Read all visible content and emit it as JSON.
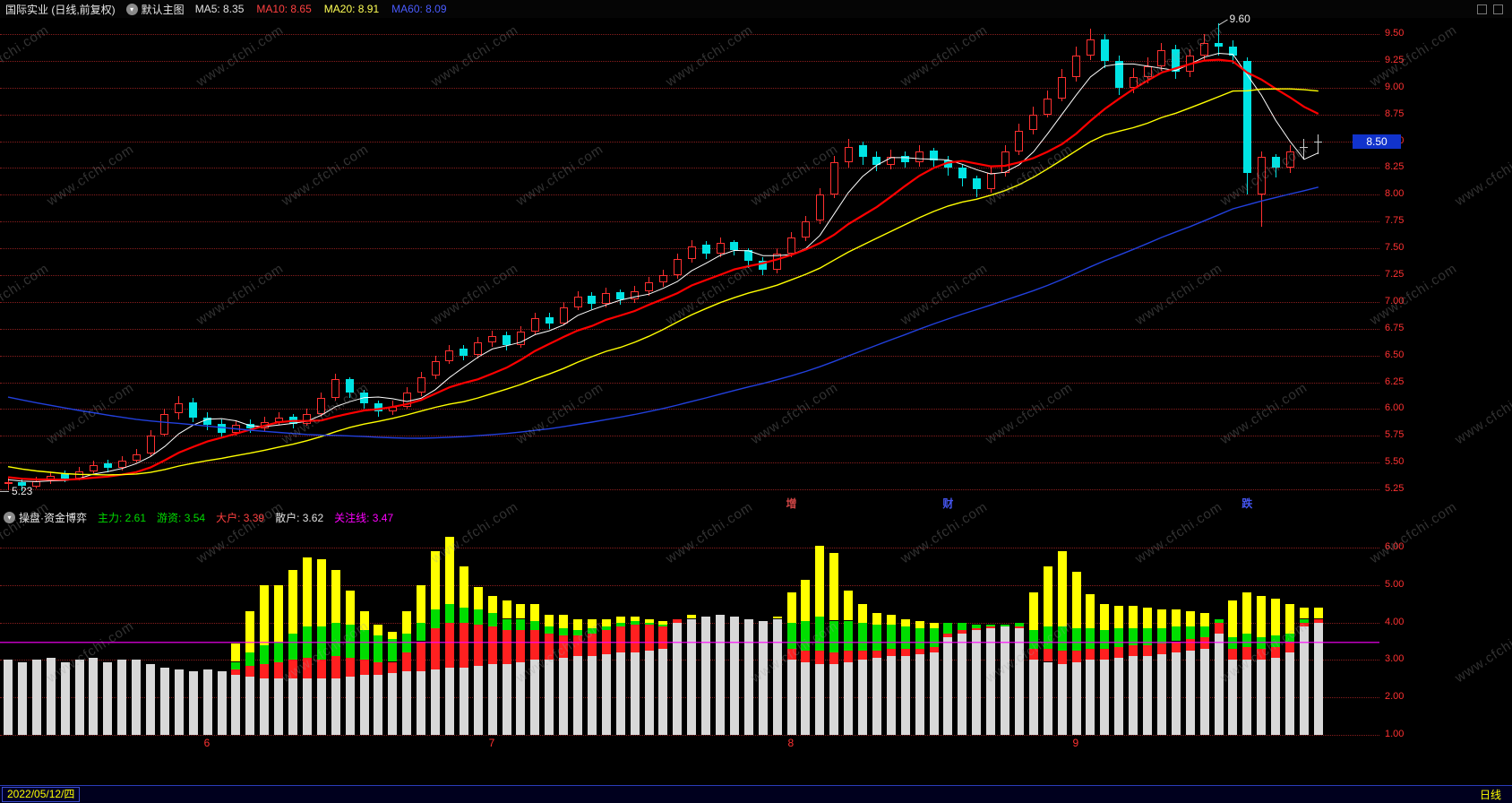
{
  "app": {
    "watermark": "www.cfchi.com",
    "topbar": {
      "title": "国际实业 (日线,前复权)",
      "chart_style_label": "默认主图",
      "ma_labels": [
        {
          "label": "MA5: 8.35",
          "color": "#e0e0e0"
        },
        {
          "label": "MA10: 8.65",
          "color": "#ff4040"
        },
        {
          "label": "MA20: 8.91",
          "color": "#ffff55"
        },
        {
          "label": "MA60: 8.09",
          "color": "#4a5cff"
        }
      ]
    },
    "sub_header": {
      "title": "操盘·资金博弈",
      "values": [
        {
          "label": "主力: 2.61",
          "color": "#00dd00"
        },
        {
          "label": "游资: 3.54",
          "color": "#00dd00"
        },
        {
          "label": "大户: 3.39",
          "color": "#ff4040"
        },
        {
          "label": "散户: 3.62",
          "color": "#e0e0e0"
        },
        {
          "label": "关注线: 3.47",
          "color": "#ff00ff"
        }
      ]
    },
    "status_bar": {
      "date": "2022/05/12/四",
      "period": "日线"
    }
  },
  "chart_data": [
    {
      "type": "candlestick",
      "title": "国际实业 日线 前复权",
      "ylim": [
        5.2,
        9.65
      ],
      "y_ticks": [
        9.5,
        9.25,
        9.0,
        8.75,
        8.5,
        8.25,
        8.0,
        7.75,
        7.5,
        7.25,
        7.0,
        6.75,
        6.5,
        6.25,
        6.0,
        5.75,
        5.5,
        5.25
      ],
      "last_price": 8.5,
      "annotations": [
        {
          "text": "9.60",
          "day": 85,
          "price": 9.6
        },
        {
          "text": "5.23",
          "day": 1,
          "price": 5.23
        }
      ],
      "events": [
        {
          "text": "增",
          "day": 55,
          "color": "#cc4444"
        },
        {
          "text": "财",
          "day": 66,
          "color": "#4455ee"
        },
        {
          "text": "跌",
          "day": 87,
          "color": "#4455ee"
        }
      ],
      "x_ticks": [
        {
          "label": "6",
          "day": 14
        },
        {
          "label": "7",
          "day": 34
        },
        {
          "label": "8",
          "day": 55
        },
        {
          "label": "9",
          "day": 75
        }
      ],
      "ma": [
        {
          "name": "MA5",
          "n": 5,
          "color": "#ffffff",
          "width": 1
        },
        {
          "name": "MA10",
          "n": 10,
          "color": "#ff0000",
          "width": 2.2
        },
        {
          "name": "MA20",
          "n": 20,
          "color": "#ffff00",
          "width": 1.4
        },
        {
          "name": "MA60",
          "n": 60,
          "color": "#2240dd",
          "width": 1.4
        }
      ],
      "colors": {
        "up": "#ff3030",
        "down": "#00e4e4",
        "doji": "#cccccc",
        "grid": "#be2a2a",
        "axis_text": "#ff3232",
        "price_marker_bg": "#1133cc"
      },
      "candle_format": "[open, close, low, high]",
      "pre_closes": [
        6.9,
        6.88,
        6.86,
        6.84,
        6.82,
        6.8,
        6.78,
        6.76,
        6.74,
        6.72,
        6.7,
        6.68,
        6.66,
        6.64,
        6.62,
        6.6,
        6.58,
        6.56,
        6.54,
        6.52,
        6.5,
        6.48,
        6.46,
        6.44,
        6.42,
        6.4,
        6.38,
        6.36,
        6.34,
        6.32,
        6.25,
        6.2,
        6.15,
        6.1,
        6.05,
        6.0,
        5.95,
        5.9,
        5.85,
        5.8,
        5.76,
        5.72,
        5.68,
        5.64,
        5.6,
        5.56,
        5.52,
        5.5,
        5.48,
        5.46,
        5.44,
        5.42,
        5.4,
        5.38,
        5.37,
        5.36,
        5.35,
        5.35,
        5.34,
        5.34
      ],
      "candles": [
        [
          5.3,
          5.32,
          5.24,
          5.36
        ],
        [
          5.32,
          5.28,
          5.23,
          5.34
        ],
        [
          5.28,
          5.33,
          5.26,
          5.37
        ],
        [
          5.33,
          5.38,
          5.3,
          5.42
        ],
        [
          5.39,
          5.35,
          5.32,
          5.43
        ],
        [
          5.35,
          5.42,
          5.33,
          5.46
        ],
        [
          5.42,
          5.48,
          5.4,
          5.52
        ],
        [
          5.49,
          5.45,
          5.41,
          5.53
        ],
        [
          5.45,
          5.52,
          5.43,
          5.56
        ],
        [
          5.52,
          5.58,
          5.5,
          5.63
        ],
        [
          5.58,
          5.75,
          5.56,
          5.8
        ],
        [
          5.76,
          5.95,
          5.74,
          6.0
        ],
        [
          5.96,
          6.05,
          5.9,
          6.12
        ],
        [
          6.06,
          5.92,
          5.88,
          6.1
        ],
        [
          5.92,
          5.85,
          5.8,
          5.97
        ],
        [
          5.86,
          5.78,
          5.73,
          5.9
        ],
        [
          5.78,
          5.85,
          5.75,
          5.89
        ],
        [
          5.86,
          5.82,
          5.78,
          5.9
        ],
        [
          5.82,
          5.88,
          5.79,
          5.93
        ],
        [
          5.88,
          5.92,
          5.85,
          5.97
        ],
        [
          5.93,
          5.86,
          5.82,
          5.95
        ],
        [
          5.86,
          5.95,
          5.84,
          6.0
        ],
        [
          5.95,
          6.1,
          5.93,
          6.15
        ],
        [
          6.1,
          6.28,
          6.08,
          6.33
        ],
        [
          6.28,
          6.15,
          6.1,
          6.3
        ],
        [
          6.15,
          6.05,
          6.0,
          6.18
        ],
        [
          6.05,
          5.98,
          5.93,
          6.08
        ],
        [
          5.98,
          6.02,
          5.94,
          6.08
        ],
        [
          6.02,
          6.15,
          6.0,
          6.2
        ],
        [
          6.15,
          6.3,
          6.12,
          6.35
        ],
        [
          6.31,
          6.45,
          6.28,
          6.5
        ],
        [
          6.45,
          6.55,
          6.42,
          6.6
        ],
        [
          6.56,
          6.5,
          6.45,
          6.6
        ],
        [
          6.5,
          6.62,
          6.47,
          6.67
        ],
        [
          6.62,
          6.68,
          6.58,
          6.73
        ],
        [
          6.69,
          6.6,
          6.55,
          6.72
        ],
        [
          6.6,
          6.72,
          6.57,
          6.77
        ],
        [
          6.72,
          6.85,
          6.7,
          6.9
        ],
        [
          6.86,
          6.8,
          6.75,
          6.9
        ],
        [
          6.8,
          6.95,
          6.78,
          7.0
        ],
        [
          6.95,
          7.05,
          6.92,
          7.1
        ],
        [
          7.06,
          6.98,
          6.93,
          7.09
        ],
        [
          6.98,
          7.08,
          6.95,
          7.13
        ],
        [
          7.09,
          7.02,
          6.97,
          7.12
        ],
        [
          7.02,
          7.1,
          6.99,
          7.15
        ],
        [
          7.1,
          7.18,
          7.06,
          7.23
        ],
        [
          7.18,
          7.25,
          7.14,
          7.3
        ],
        [
          7.25,
          7.4,
          7.22,
          7.45
        ],
        [
          7.4,
          7.52,
          7.37,
          7.58
        ],
        [
          7.53,
          7.45,
          7.4,
          7.57
        ],
        [
          7.45,
          7.55,
          7.42,
          7.6
        ],
        [
          7.56,
          7.48,
          7.43,
          7.58
        ],
        [
          7.48,
          7.38,
          7.32,
          7.5
        ],
        [
          7.38,
          7.3,
          7.25,
          7.42
        ],
        [
          7.3,
          7.45,
          7.27,
          7.5
        ],
        [
          7.45,
          7.6,
          7.42,
          7.65
        ],
        [
          7.6,
          7.75,
          7.57,
          7.8
        ],
        [
          7.76,
          8.0,
          7.73,
          8.06
        ],
        [
          8.0,
          8.3,
          7.97,
          8.36
        ],
        [
          8.3,
          8.45,
          8.25,
          8.52
        ],
        [
          8.46,
          8.35,
          8.28,
          8.5
        ],
        [
          8.35,
          8.28,
          8.22,
          8.4
        ],
        [
          8.28,
          8.35,
          8.24,
          8.42
        ],
        [
          8.36,
          8.3,
          8.25,
          8.4
        ],
        [
          8.3,
          8.4,
          8.26,
          8.46
        ],
        [
          8.41,
          8.32,
          8.26,
          8.44
        ],
        [
          8.32,
          8.25,
          8.18,
          8.36
        ],
        [
          8.25,
          8.15,
          8.08,
          8.28
        ],
        [
          8.15,
          8.05,
          7.98,
          8.18
        ],
        [
          8.05,
          8.2,
          8.02,
          8.26
        ],
        [
          8.2,
          8.4,
          8.17,
          8.46
        ],
        [
          8.4,
          8.6,
          8.37,
          8.66
        ],
        [
          8.6,
          8.75,
          8.56,
          8.82
        ],
        [
          8.75,
          8.9,
          8.72,
          8.97
        ],
        [
          8.9,
          9.1,
          8.87,
          9.17
        ],
        [
          9.1,
          9.3,
          9.06,
          9.38
        ],
        [
          9.3,
          9.45,
          9.26,
          9.55
        ],
        [
          9.45,
          9.25,
          9.18,
          9.5
        ],
        [
          9.25,
          9.0,
          8.93,
          9.3
        ],
        [
          9.0,
          9.1,
          8.95,
          9.18
        ],
        [
          9.1,
          9.2,
          9.04,
          9.28
        ],
        [
          9.2,
          9.35,
          9.16,
          9.42
        ],
        [
          9.36,
          9.15,
          9.08,
          9.4
        ],
        [
          9.15,
          9.3,
          9.1,
          9.36
        ],
        [
          9.3,
          9.42,
          9.26,
          9.5
        ],
        [
          9.42,
          9.38,
          9.3,
          9.6
        ],
        [
          9.38,
          9.3,
          9.22,
          9.44
        ],
        [
          9.25,
          8.2,
          8.0,
          9.28
        ],
        [
          8.0,
          8.35,
          7.7,
          8.4
        ],
        [
          8.35,
          8.25,
          8.16,
          8.38
        ],
        [
          8.25,
          8.4,
          8.2,
          8.46
        ],
        [
          8.45,
          8.45,
          8.33,
          8.52
        ],
        [
          8.5,
          8.5,
          8.38,
          8.56
        ]
      ]
    },
    {
      "type": "stacked_bar",
      "title": "操盘·资金博弈",
      "ylim": [
        1.0,
        6.6
      ],
      "y_ticks": [
        6.0,
        5.0,
        4.0,
        3.0,
        2.0,
        1.0
      ],
      "attention_line": 3.47,
      "attention_color": "#ff00ff",
      "segment_names": [
        "散户",
        "大户",
        "主力",
        "游资"
      ],
      "segment_colors": [
        "#d8d8d8",
        "#ff2020",
        "#00dd00",
        "#ffff00"
      ],
      "bar_format": "[white, red, green, yellow]",
      "bars": [
        [
          3.0,
          0,
          0,
          0
        ],
        [
          2.95,
          0,
          0,
          0
        ],
        [
          3.0,
          0,
          0,
          0
        ],
        [
          3.05,
          0,
          0,
          0
        ],
        [
          2.95,
          0,
          0,
          0
        ],
        [
          3.0,
          0,
          0,
          0
        ],
        [
          3.05,
          0,
          0,
          0
        ],
        [
          2.95,
          0,
          0,
          0
        ],
        [
          3.0,
          0,
          0,
          0
        ],
        [
          3.0,
          0,
          0,
          0
        ],
        [
          2.9,
          0,
          0,
          0
        ],
        [
          2.8,
          0,
          0,
          0
        ],
        [
          2.75,
          0,
          0,
          0
        ],
        [
          2.7,
          0,
          0,
          0
        ],
        [
          2.75,
          0,
          0,
          0
        ],
        [
          2.7,
          0,
          0,
          0
        ],
        [
          2.6,
          0.15,
          0.2,
          0.5
        ],
        [
          2.55,
          0.3,
          0.35,
          1.1
        ],
        [
          2.5,
          0.4,
          0.5,
          1.6
        ],
        [
          2.5,
          0.45,
          0.55,
          1.5
        ],
        [
          2.5,
          0.5,
          0.7,
          1.7
        ],
        [
          2.5,
          0.55,
          0.85,
          1.85
        ],
        [
          2.5,
          0.5,
          0.9,
          1.8
        ],
        [
          2.5,
          0.6,
          0.9,
          1.4
        ],
        [
          2.55,
          0.5,
          0.9,
          0.9
        ],
        [
          2.6,
          0.4,
          0.8,
          0.5
        ],
        [
          2.6,
          0.35,
          0.7,
          0.3
        ],
        [
          2.65,
          0.3,
          0.6,
          0.2
        ],
        [
          2.7,
          0.5,
          0.5,
          0.6
        ],
        [
          2.7,
          0.8,
          0.5,
          1.0
        ],
        [
          2.75,
          1.1,
          0.5,
          1.55
        ],
        [
          2.8,
          1.2,
          0.5,
          1.8
        ],
        [
          2.8,
          1.2,
          0.4,
          1.1
        ],
        [
          2.85,
          1.1,
          0.4,
          0.6
        ],
        [
          2.9,
          1.0,
          0.35,
          0.45
        ],
        [
          2.9,
          0.9,
          0.3,
          0.5
        ],
        [
          2.95,
          0.85,
          0.3,
          0.4
        ],
        [
          3.0,
          0.8,
          0.25,
          0.45
        ],
        [
          3.0,
          0.7,
          0.2,
          0.3
        ],
        [
          3.05,
          0.6,
          0.2,
          0.35
        ],
        [
          3.1,
          0.55,
          0.15,
          0.3
        ],
        [
          3.1,
          0.6,
          0.15,
          0.25
        ],
        [
          3.15,
          0.65,
          0.1,
          0.2
        ],
        [
          3.2,
          0.7,
          0.1,
          0.15
        ],
        [
          3.2,
          0.75,
          0.1,
          0.1
        ],
        [
          3.25,
          0.7,
          0.05,
          0.1
        ],
        [
          3.3,
          0.6,
          0.05,
          0.1
        ],
        [
          4.0,
          0.1,
          0,
          0
        ],
        [
          4.1,
          0,
          0,
          0.1
        ],
        [
          4.15,
          0,
          0,
          0
        ],
        [
          4.2,
          0,
          0,
          0
        ],
        [
          4.15,
          0,
          0,
          0
        ],
        [
          4.1,
          0,
          0,
          0
        ],
        [
          4.05,
          0,
          0,
          0
        ],
        [
          4.1,
          0,
          0,
          0.05
        ],
        [
          3.0,
          0.3,
          0.7,
          0.8
        ],
        [
          2.95,
          0.3,
          0.8,
          1.1
        ],
        [
          2.9,
          0.35,
          0.9,
          1.9
        ],
        [
          2.9,
          0.3,
          0.85,
          1.8
        ],
        [
          2.95,
          0.3,
          0.8,
          0.8
        ],
        [
          3.0,
          0.25,
          0.75,
          0.5
        ],
        [
          3.05,
          0.2,
          0.7,
          0.3
        ],
        [
          3.1,
          0.2,
          0.65,
          0.25
        ],
        [
          3.1,
          0.2,
          0.6,
          0.2
        ],
        [
          3.15,
          0.15,
          0.55,
          0.2
        ],
        [
          3.2,
          0.15,
          0.5,
          0.15
        ],
        [
          3.6,
          0.1,
          0.3,
          0
        ],
        [
          3.7,
          0.1,
          0.2,
          0
        ],
        [
          3.8,
          0.05,
          0.1,
          0
        ],
        [
          3.85,
          0.05,
          0.05,
          0
        ],
        [
          3.9,
          0,
          0.05,
          0
        ],
        [
          3.85,
          0.05,
          0.1,
          0
        ],
        [
          3.0,
          0.3,
          0.5,
          1.0
        ],
        [
          2.95,
          0.35,
          0.6,
          1.6
        ],
        [
          2.9,
          0.35,
          0.65,
          2.0
        ],
        [
          2.95,
          0.3,
          0.6,
          1.5
        ],
        [
          3.0,
          0.3,
          0.55,
          0.9
        ],
        [
          3.0,
          0.3,
          0.5,
          0.7
        ],
        [
          3.05,
          0.3,
          0.5,
          0.6
        ],
        [
          3.1,
          0.3,
          0.45,
          0.6
        ],
        [
          3.1,
          0.3,
          0.45,
          0.55
        ],
        [
          3.15,
          0.3,
          0.4,
          0.5
        ],
        [
          3.2,
          0.3,
          0.4,
          0.45
        ],
        [
          3.25,
          0.3,
          0.35,
          0.4
        ],
        [
          3.3,
          0.3,
          0.3,
          0.35
        ],
        [
          3.7,
          0.3,
          0.1,
          0
        ],
        [
          3.0,
          0.3,
          0.3,
          1.0
        ],
        [
          3.0,
          0.35,
          0.35,
          1.1
        ],
        [
          3.0,
          0.3,
          0.3,
          1.1
        ],
        [
          3.05,
          0.3,
          0.3,
          1.0
        ],
        [
          3.2,
          0.3,
          0.2,
          0.8
        ],
        [
          3.9,
          0.1,
          0.1,
          0.3
        ],
        [
          4.0,
          0.1,
          0,
          0.3
        ]
      ]
    }
  ]
}
